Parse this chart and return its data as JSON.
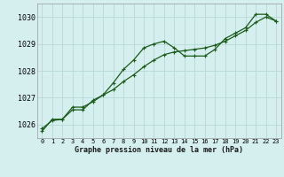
{
  "title": "Graphe pression niveau de la mer (hPa)",
  "bg_color": "#d5eeee",
  "grid_color": "#b8d8d8",
  "line_color": "#1a5c1a",
  "xlim": [
    -0.5,
    23.5
  ],
  "ylim": [
    1025.5,
    1030.5
  ],
  "yticks": [
    1026,
    1027,
    1028,
    1029,
    1030
  ],
  "xticks": [
    0,
    1,
    2,
    3,
    4,
    5,
    6,
    7,
    8,
    9,
    10,
    11,
    12,
    13,
    14,
    15,
    16,
    17,
    18,
    19,
    20,
    21,
    22,
    23
  ],
  "series1": [
    1025.75,
    1026.2,
    1026.2,
    1026.65,
    1026.65,
    1026.85,
    1027.1,
    1027.55,
    1028.05,
    1028.4,
    1028.85,
    1029.0,
    1029.1,
    1028.85,
    1028.55,
    1028.55,
    1028.55,
    1028.8,
    1029.2,
    1029.4,
    1029.6,
    1030.1,
    1030.1,
    1029.85
  ],
  "series2": [
    1025.85,
    1026.15,
    1026.2,
    1026.55,
    1026.55,
    1026.9,
    1027.1,
    1027.3,
    1027.6,
    1027.85,
    1028.15,
    1028.4,
    1028.6,
    1028.7,
    1028.75,
    1028.8,
    1028.85,
    1028.95,
    1029.1,
    1029.3,
    1029.5,
    1029.8,
    1030.0,
    1029.85
  ]
}
